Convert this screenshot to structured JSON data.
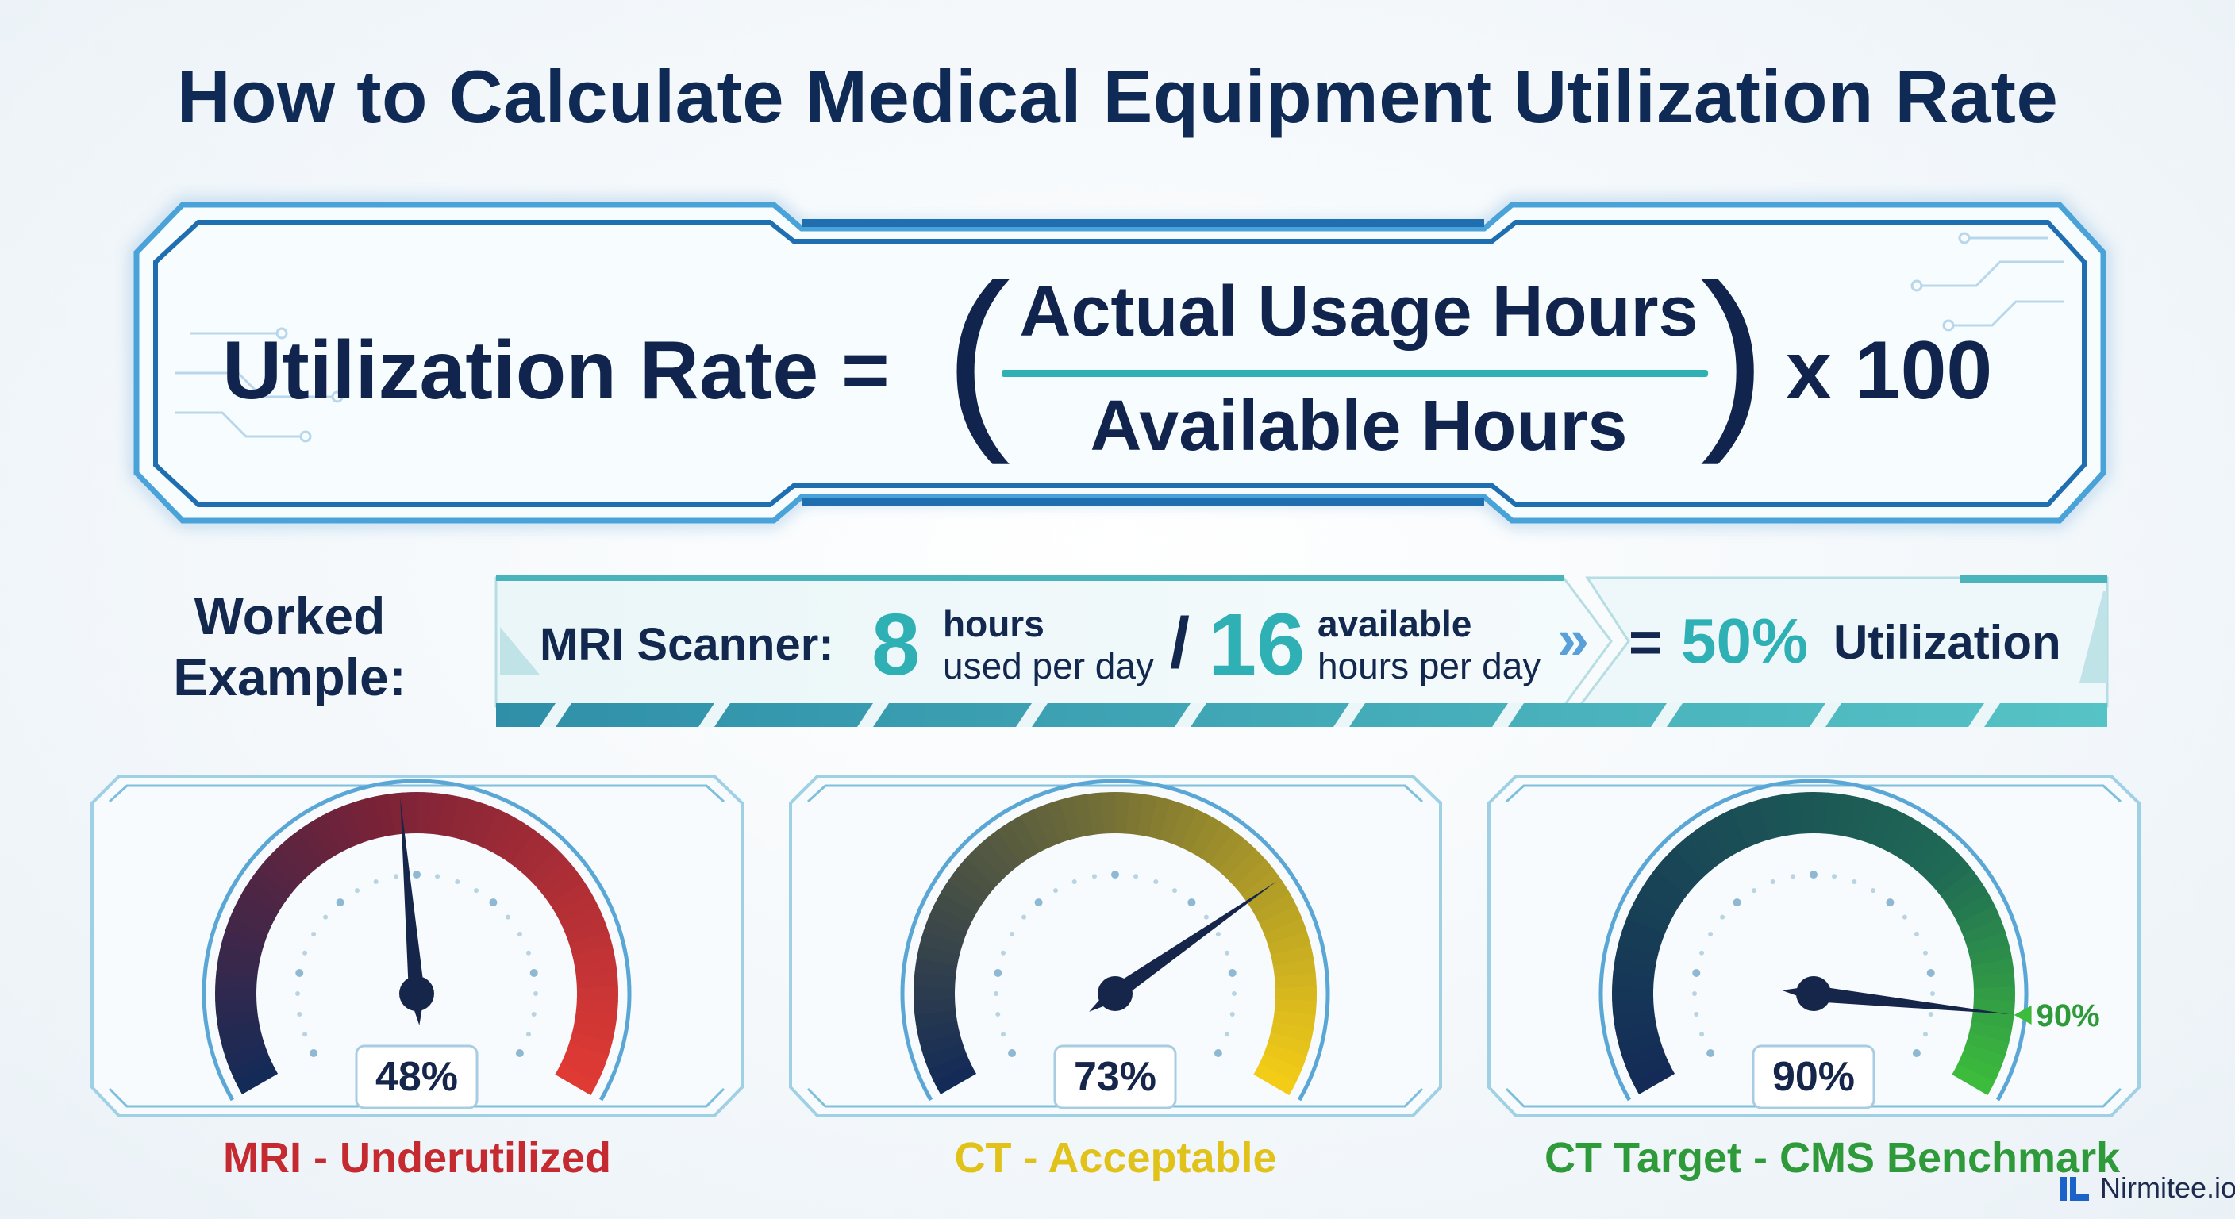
{
  "title": "How to Calculate Medical Equipment Utilization Rate",
  "formula": {
    "label": "Utilization Rate =",
    "numerator": "Actual Usage Hours",
    "denominator": "Available Hours",
    "open_paren": "(",
    "close_paren": ")",
    "multiplier": "x 100"
  },
  "worked_example": {
    "heading_line1": "Worked",
    "heading_line2": "Example:",
    "equipment": "MRI Scanner:",
    "used_value": "8",
    "used_unit_line1": "hours",
    "used_unit_line2": "used per day",
    "divider": "/",
    "available_value": "16",
    "available_unit_line1": "available",
    "available_unit_line2": "hours per day",
    "arrow": "»",
    "equals": "=",
    "result_value": "50%",
    "result_label": "Utilization"
  },
  "gauges": [
    {
      "label": "48%",
      "value": 48,
      "caption": "MRI - Underutilized",
      "caption_color": "#c42a2f",
      "start_color": "#142b57",
      "end_color": "#e03a34"
    },
    {
      "label": "73%",
      "value": 73,
      "caption": "CT - Acceptable",
      "caption_color": "#e1c21a",
      "start_color": "#142b57",
      "end_color": "#f3cc17"
    },
    {
      "label": "90%",
      "value": 90,
      "caption": "CT Target - CMS Benchmark",
      "caption_color": "#2f9a3a",
      "start_color": "#142b57",
      "end_color": "#3dbb3c",
      "marker_label": "90%"
    }
  ],
  "brand": {
    "name": "Nirmitee.io"
  },
  "colors": {
    "accent_teal": "#2eb0b5",
    "navy": "#10244d",
    "frame_blue": "#3a8fd0"
  }
}
